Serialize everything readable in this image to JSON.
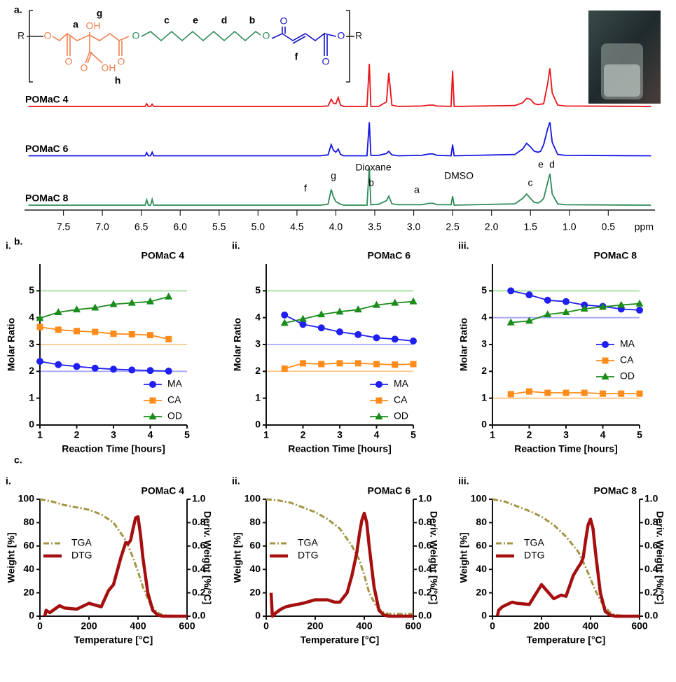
{
  "panel_labels": {
    "a": "a.",
    "b": "b.",
    "c": "c."
  },
  "structure": {
    "atoms": [
      "R",
      "O",
      "O",
      "OH",
      "O",
      "OH",
      "O",
      "O",
      "O",
      "O",
      "O",
      "O",
      "R"
    ],
    "letters": [
      "a",
      "g",
      "c",
      "e",
      "d",
      "b",
      "f",
      "h"
    ]
  },
  "chart_data": [
    {
      "type": "spectrum",
      "xlabel": "ppm",
      "xlim": [
        8.0,
        -0.1
      ],
      "ylim": [
        0,
        100
      ],
      "xticks": [
        7.5,
        {
          "value": 7,
          "label": "7.0"
        },
        6.5,
        {
          "value": 6,
          "label": "6.0"
        },
        5.5,
        {
          "value": 5,
          "label": "5.0"
        },
        4.5,
        {
          "value": 4,
          "label": "4.0"
        },
        3.5,
        {
          "value": 3,
          "label": "3.0"
        },
        2.5,
        {
          "value": 2,
          "label": "2.0"
        },
        1.5,
        {
          "value": 1,
          "label": "1.0"
        },
        0.5
      ],
      "x": [
        7.95,
        6.5,
        6.45,
        6.43,
        6.41,
        6.38,
        6.36,
        6.34,
        6.3,
        4.2,
        4.1,
        4.06,
        4.03,
        4.0,
        3.97,
        3.94,
        3.9,
        3.6,
        3.57,
        3.55,
        3.45,
        3.35,
        3.32,
        3.28,
        3.2,
        2.9,
        2.8,
        2.75,
        2.7,
        2.52,
        2.5,
        2.48,
        1.7,
        1.6,
        1.55,
        1.5,
        1.45,
        1.4,
        1.37,
        1.33,
        1.28,
        1.25,
        1.22,
        1.15,
        1.05,
        -0.05
      ],
      "series": [
        {
          "name": "POMaC 4",
          "color": "#e8141a",
          "values": [
            0,
            0,
            0,
            6,
            0,
            0,
            5,
            0,
            0,
            0,
            1,
            16,
            7,
            6,
            20,
            3,
            0,
            0,
            95,
            0,
            0,
            10,
            75,
            3,
            0,
            1,
            3,
            3,
            1,
            0,
            80,
            0,
            2,
            8,
            18,
            16,
            6,
            4,
            5,
            6,
            50,
            85,
            30,
            3,
            1,
            0
          ]
        },
        {
          "name": "POMaC 6",
          "color": "#1414e0",
          "values": [
            0,
            0,
            0,
            7,
            0,
            0,
            8,
            0,
            0,
            0,
            2,
            25,
            12,
            8,
            15,
            3,
            0,
            0,
            75,
            1,
            1,
            5,
            10,
            2,
            0,
            1,
            4,
            4,
            1,
            0,
            25,
            0,
            3,
            15,
            28,
            20,
            10,
            8,
            10,
            25,
            60,
            75,
            30,
            3,
            1,
            0
          ]
        },
        {
          "name": "POMaC 8",
          "color": "#2e8b57",
          "values": [
            0,
            0,
            0,
            12,
            0,
            0,
            13,
            0,
            0,
            0,
            2,
            35,
            18,
            8,
            5,
            2,
            0,
            0,
            85,
            1,
            2,
            10,
            20,
            3,
            1,
            1,
            4,
            4,
            1,
            1,
            20,
            0,
            3,
            15,
            25,
            15,
            6,
            5,
            8,
            15,
            50,
            70,
            25,
            3,
            1,
            0
          ]
        }
      ],
      "annotations": [
        "Dioxane",
        "DMSO",
        "f",
        "g",
        "b",
        "a",
        "c",
        "e",
        "d"
      ]
    },
    {
      "type": "line",
      "panel": "i.",
      "title": "POMaC 4",
      "xlabel": "Reaction Time [hours]",
      "ylabel": "Molar Ratio",
      "xlim": [
        1,
        5
      ],
      "ylim": [
        0,
        6
      ],
      "xticks": [
        1,
        2,
        3,
        4,
        5
      ],
      "yticks": [
        0,
        1,
        2,
        3,
        4,
        5
      ],
      "legend": "lower right",
      "reference_lines": [
        {
          "value": 5,
          "color": "#a8e0a0"
        },
        {
          "value": 3,
          "color": "#ffc88a"
        },
        {
          "value": 2,
          "color": "#a8a8ff"
        }
      ],
      "x": [
        1,
        1.5,
        2,
        2.5,
        3,
        3.5,
        4,
        4.5
      ],
      "series": [
        {
          "name": "MA",
          "color": "#1f1fef",
          "marker": "circle",
          "values": [
            2.37,
            2.25,
            2.18,
            2.12,
            2.08,
            2.05,
            2.03,
            2.01
          ]
        },
        {
          "name": "CA",
          "color": "#ff8c1a",
          "marker": "square",
          "values": [
            3.65,
            3.55,
            3.5,
            3.47,
            3.4,
            3.38,
            3.35,
            3.2
          ]
        },
        {
          "name": "OD",
          "color": "#1a8c1a",
          "marker": "triangle",
          "values": [
            3.98,
            4.2,
            4.3,
            4.37,
            4.5,
            4.55,
            4.6,
            4.78
          ]
        }
      ]
    },
    {
      "type": "line",
      "panel": "ii.",
      "title": "POMaC 6",
      "xlabel": "Reaction Time [hours]",
      "ylabel": "Molar Ratio",
      "xlim": [
        1,
        5
      ],
      "ylim": [
        0,
        6
      ],
      "xticks": [
        1,
        2,
        3,
        4,
        5
      ],
      "yticks": [
        0,
        1,
        2,
        3,
        4,
        5
      ],
      "legend": "lower right",
      "reference_lines": [
        {
          "value": 5,
          "color": "#a8e0a0"
        },
        {
          "value": 3,
          "color": "#a8a8ff"
        },
        {
          "value": 2,
          "color": "#ffc88a"
        }
      ],
      "x": [
        1.5,
        2,
        2.5,
        3,
        3.5,
        4,
        4.5,
        5
      ],
      "series": [
        {
          "name": "MA",
          "color": "#1f1fef",
          "marker": "circle",
          "values": [
            4.1,
            3.75,
            3.62,
            3.47,
            3.37,
            3.25,
            3.2,
            3.13
          ]
        },
        {
          "name": "CA",
          "color": "#ff8c1a",
          "marker": "square",
          "values": [
            2.1,
            2.3,
            2.27,
            2.3,
            2.3,
            2.27,
            2.25,
            2.27
          ]
        },
        {
          "name": "OD",
          "color": "#1a8c1a",
          "marker": "triangle",
          "values": [
            3.8,
            3.95,
            4.12,
            4.22,
            4.3,
            4.47,
            4.55,
            4.6
          ]
        }
      ]
    },
    {
      "type": "line",
      "panel": "iii.",
      "title": "POMaC 8",
      "xlabel": "Reaction Time [hours]",
      "ylabel": "Molar Ratio",
      "xlim": [
        1,
        5
      ],
      "ylim": [
        0,
        6
      ],
      "xticks": [
        1,
        2,
        3,
        4,
        5
      ],
      "yticks": [
        0,
        1,
        2,
        3,
        4,
        5
      ],
      "legend": "center right",
      "reference_lines": [
        {
          "value": 5,
          "color": "#a8e0a0"
        },
        {
          "value": 4,
          "color": "#a8a8ff"
        },
        {
          "value": 1,
          "color": "#ffc88a"
        }
      ],
      "x": [
        1.5,
        2,
        2.5,
        3,
        3.5,
        4,
        4.5,
        5
      ],
      "series": [
        {
          "name": "MA",
          "color": "#1f1fef",
          "marker": "circle",
          "values": [
            5.0,
            4.85,
            4.65,
            4.6,
            4.47,
            4.42,
            4.32,
            4.28
          ]
        },
        {
          "name": "CA",
          "color": "#ff8c1a",
          "marker": "square",
          "values": [
            1.15,
            1.25,
            1.2,
            1.2,
            1.2,
            1.17,
            1.17,
            1.17
          ]
        },
        {
          "name": "OD",
          "color": "#1a8c1a",
          "marker": "triangle",
          "values": [
            3.82,
            3.88,
            4.12,
            4.2,
            4.33,
            4.4,
            4.47,
            4.52
          ]
        }
      ]
    },
    {
      "type": "line",
      "panel": "i.",
      "title": "POMaC 4",
      "xlabel": "Temperature [°C]",
      "ylabel": "Weight [%]",
      "y2label": "Deriv. Weight [%/°C]",
      "xlim": [
        0,
        600
      ],
      "ylim": [
        0,
        100
      ],
      "y2lim": [
        0,
        1
      ],
      "xticks": [
        0,
        200,
        400,
        600
      ],
      "yticks": [
        0,
        20,
        40,
        60,
        80,
        100
      ],
      "y2ticks": [
        {
          "value": 0,
          "label": "0.0"
        },
        0.2,
        0.4,
        0.6,
        0.8,
        {
          "value": 1,
          "label": "1.0"
        }
      ],
      "legend": "center left",
      "series": [
        {
          "name": "TGA",
          "color": "#a39443",
          "dash": true,
          "x": [
            0,
            50,
            100,
            150,
            200,
            250,
            300,
            350,
            380,
            400,
            420,
            450,
            480,
            500,
            550,
            600
          ],
          "values": [
            100,
            98,
            95,
            93,
            91,
            87,
            80,
            65,
            50,
            38,
            25,
            10,
            3,
            1,
            0,
            0
          ]
        },
        {
          "name": "DTG",
          "color": "#a50f0f",
          "axis": "y2",
          "x": [
            20,
            25,
            40,
            60,
            80,
            100,
            150,
            200,
            250,
            280,
            300,
            330,
            350,
            360,
            370,
            380,
            390,
            400,
            410,
            420,
            440,
            460,
            480,
            500,
            550,
            600
          ],
          "values": [
            0,
            0.05,
            0.03,
            0.06,
            0.09,
            0.07,
            0.06,
            0.11,
            0.08,
            0.22,
            0.27,
            0.5,
            0.63,
            0.62,
            0.65,
            0.75,
            0.84,
            0.85,
            0.7,
            0.5,
            0.2,
            0.05,
            0.01,
            0,
            0,
            0
          ]
        }
      ]
    },
    {
      "type": "line",
      "panel": "ii.",
      "title": "POMaC 6",
      "xlabel": "Temperature [°C]",
      "ylabel": "Weight [%]",
      "y2label": "Deriv. Weight [%/°C]",
      "xlim": [
        0,
        600
      ],
      "ylim": [
        0,
        100
      ],
      "y2lim": [
        0,
        1
      ],
      "xticks": [
        0,
        200,
        400,
        600
      ],
      "yticks": [
        0,
        20,
        40,
        60,
        80,
        100
      ],
      "y2ticks": [
        {
          "value": 0,
          "label": "0.0"
        },
        0.2,
        0.4,
        0.6,
        0.8,
        {
          "value": 1,
          "label": "1.0"
        }
      ],
      "legend": "center left",
      "series": [
        {
          "name": "TGA",
          "color": "#a39443",
          "dash": true,
          "x": [
            0,
            50,
            100,
            150,
            200,
            250,
            300,
            350,
            380,
            400,
            420,
            450,
            480,
            500,
            550,
            600
          ],
          "values": [
            100,
            99,
            97,
            93,
            89,
            83,
            75,
            60,
            48,
            35,
            20,
            8,
            3,
            2,
            2,
            2
          ]
        },
        {
          "name": "DTG",
          "color": "#a50f0f",
          "axis": "y2",
          "x": [
            20,
            25,
            40,
            60,
            80,
            100,
            150,
            200,
            250,
            280,
            300,
            330,
            350,
            360,
            370,
            380,
            390,
            400,
            410,
            420,
            440,
            460,
            480,
            500,
            550,
            600
          ],
          "values": [
            0.2,
            0,
            0.03,
            0.06,
            0.08,
            0.09,
            0.11,
            0.14,
            0.14,
            0.12,
            0.12,
            0.2,
            0.35,
            0.45,
            0.55,
            0.7,
            0.82,
            0.88,
            0.8,
            0.6,
            0.25,
            0.05,
            0.01,
            0,
            0,
            0
          ]
        }
      ]
    },
    {
      "type": "line",
      "panel": "iii.",
      "title": "POMaC 8",
      "xlabel": "Temperature [°C]",
      "ylabel": "Weight [%]",
      "y2label": "Deriv. Weight [%/°C]",
      "xlim": [
        0,
        600
      ],
      "ylim": [
        0,
        100
      ],
      "y2lim": [
        0,
        1
      ],
      "xticks": [
        0,
        200,
        400,
        600
      ],
      "yticks": [
        0,
        20,
        40,
        60,
        80,
        100
      ],
      "y2ticks": [
        {
          "value": 0,
          "label": "0.0"
        },
        0.2,
        0.4,
        0.6,
        0.8,
        {
          "value": 1,
          "label": "1.0"
        }
      ],
      "legend": "center left",
      "series": [
        {
          "name": "TGA",
          "color": "#a39443",
          "dash": true,
          "x": [
            0,
            50,
            100,
            150,
            200,
            250,
            300,
            350,
            380,
            400,
            420,
            450,
            480,
            500,
            550,
            600
          ],
          "values": [
            100,
            98,
            94,
            90,
            85,
            78,
            68,
            55,
            42,
            32,
            22,
            10,
            3,
            1,
            0,
            0
          ]
        },
        {
          "name": "DTG",
          "color": "#a50f0f",
          "axis": "y2",
          "x": [
            20,
            25,
            40,
            60,
            80,
            100,
            150,
            200,
            250,
            280,
            300,
            330,
            350,
            360,
            370,
            380,
            390,
            400,
            410,
            420,
            440,
            460,
            480,
            500,
            550,
            600
          ],
          "values": [
            0,
            0.05,
            0.08,
            0.1,
            0.12,
            0.11,
            0.1,
            0.27,
            0.15,
            0.18,
            0.17,
            0.35,
            0.42,
            0.45,
            0.5,
            0.65,
            0.78,
            0.83,
            0.75,
            0.55,
            0.2,
            0.04,
            0.01,
            0,
            0,
            0
          ]
        }
      ]
    }
  ]
}
